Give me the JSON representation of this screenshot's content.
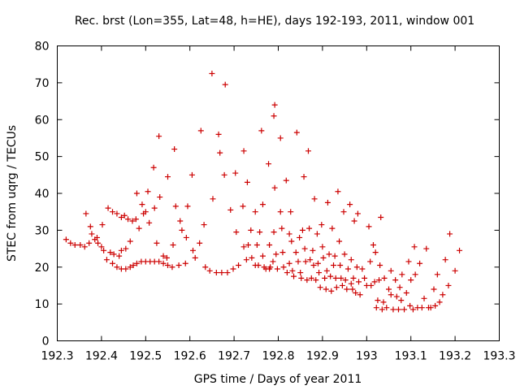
{
  "chart_data": {
    "type": "scatter",
    "title": "Rec. brst (Lon=355, Lat=48, h=HE), days 192-193, 2011, window 001",
    "xlabel": "GPS time / Days of year 2011",
    "ylabel": "STEC from uqrg / TECUs",
    "xlim": [
      192.3,
      193.3
    ],
    "ylim": [
      0,
      80
    ],
    "xticks": [
      192.3,
      192.4,
      192.5,
      192.6,
      192.7,
      192.8,
      192.9,
      193.0,
      193.1,
      193.2,
      193.3
    ],
    "xtick_labels": [
      "192.3",
      "192.4",
      "192.5",
      "192.6",
      "192.7",
      "192.8",
      "192.9",
      "193",
      "193.1",
      "193.2",
      "193.3"
    ],
    "yticks": [
      0,
      10,
      20,
      30,
      40,
      50,
      60,
      70,
      80
    ],
    "ytick_labels": [
      "0",
      "10",
      "20",
      "30",
      "40",
      "50",
      "60",
      "70",
      "80"
    ],
    "grid": false,
    "legend": "none",
    "marker": "plus",
    "marker_color": "#cc0000",
    "series": [
      {
        "name": "STEC",
        "points": [
          [
            192.32,
            27.5
          ],
          [
            192.33,
            26.5
          ],
          [
            192.34,
            26.0
          ],
          [
            192.352,
            26.0
          ],
          [
            192.362,
            25.5
          ],
          [
            192.372,
            26.5
          ],
          [
            192.375,
            31.0
          ],
          [
            192.378,
            29.0
          ],
          [
            192.385,
            27.5
          ],
          [
            192.39,
            28.0
          ],
          [
            192.392,
            26.5
          ],
          [
            192.365,
            34.5
          ],
          [
            192.402,
            31.5
          ],
          [
            192.4,
            25.5
          ],
          [
            192.405,
            24.5
          ],
          [
            192.412,
            22.0
          ],
          [
            192.415,
            36.0
          ],
          [
            192.425,
            35.0
          ],
          [
            192.435,
            34.5
          ],
          [
            192.445,
            33.5
          ],
          [
            192.452,
            34.0
          ],
          [
            192.42,
            24.0
          ],
          [
            192.428,
            23.5
          ],
          [
            192.44,
            23.0
          ],
          [
            192.445,
            24.5
          ],
          [
            192.455,
            25.0
          ],
          [
            192.465,
            27.0
          ],
          [
            192.425,
            21.0
          ],
          [
            192.435,
            20.0
          ],
          [
            192.445,
            19.5
          ],
          [
            192.455,
            19.5
          ],
          [
            192.465,
            20.0
          ],
          [
            192.472,
            20.5
          ],
          [
            192.48,
            21.0
          ],
          [
            192.49,
            21.5
          ],
          [
            192.5,
            21.5
          ],
          [
            192.51,
            21.5
          ],
          [
            192.52,
            21.5
          ],
          [
            192.53,
            21.5
          ],
          [
            192.54,
            21.0
          ],
          [
            192.55,
            20.5
          ],
          [
            192.56,
            20.0
          ],
          [
            192.575,
            20.5
          ],
          [
            192.59,
            21.0
          ],
          [
            192.46,
            33.0
          ],
          [
            192.47,
            32.5
          ],
          [
            192.478,
            33.0
          ],
          [
            192.48,
            40.0
          ],
          [
            192.485,
            30.5
          ],
          [
            192.492,
            37.0
          ],
          [
            192.495,
            34.5
          ],
          [
            192.5,
            35.0
          ],
          [
            192.505,
            40.5
          ],
          [
            192.508,
            32.0
          ],
          [
            192.52,
            36.0
          ],
          [
            192.518,
            47.0
          ],
          [
            192.525,
            26.5
          ],
          [
            192.532,
            39.0
          ],
          [
            192.53,
            55.5
          ],
          [
            192.54,
            23.0
          ],
          [
            192.548,
            22.5
          ],
          [
            192.55,
            44.5
          ],
          [
            192.565,
            52.0
          ],
          [
            192.562,
            26.0
          ],
          [
            192.568,
            36.5
          ],
          [
            192.578,
            32.5
          ],
          [
            192.582,
            30.0
          ],
          [
            192.592,
            28.0
          ],
          [
            192.595,
            36.5
          ],
          [
            192.605,
            45.0
          ],
          [
            192.607,
            24.5
          ],
          [
            192.612,
            22.5
          ],
          [
            192.625,
            57.0
          ],
          [
            192.622,
            26.5
          ],
          [
            192.632,
            31.5
          ],
          [
            192.635,
            20.0
          ],
          [
            192.645,
            19.0
          ],
          [
            192.65,
            72.5
          ],
          [
            192.652,
            38.5
          ],
          [
            192.66,
            18.5
          ],
          [
            192.665,
            56.0
          ],
          [
            192.668,
            51.0
          ],
          [
            192.672,
            18.5
          ],
          [
            192.678,
            45.0
          ],
          [
            192.68,
            69.5
          ],
          [
            192.685,
            18.5
          ],
          [
            192.692,
            35.5
          ],
          [
            192.698,
            19.5
          ],
          [
            192.703,
            45.5
          ],
          [
            192.705,
            29.5
          ],
          [
            192.71,
            20.5
          ],
          [
            192.722,
            51.5
          ],
          [
            192.72,
            36.5
          ],
          [
            192.722,
            25.5
          ],
          [
            192.728,
            22.0
          ],
          [
            192.732,
            26.0
          ],
          [
            192.73,
            43.0
          ],
          [
            192.738,
            30.0
          ],
          [
            192.74,
            22.5
          ],
          [
            192.748,
            35.0
          ],
          [
            192.748,
            20.5
          ],
          [
            192.752,
            26.0
          ],
          [
            192.755,
            20.5
          ],
          [
            192.758,
            29.5
          ],
          [
            192.762,
            57.0
          ],
          [
            192.765,
            37.0
          ],
          [
            192.765,
            23.0
          ],
          [
            192.768,
            20.0
          ],
          [
            192.772,
            19.5
          ],
          [
            192.778,
            48.0
          ],
          [
            192.78,
            26.0
          ],
          [
            192.78,
            19.5
          ],
          [
            192.782,
            20.0
          ],
          [
            192.788,
            21.5
          ],
          [
            192.79,
            29.5
          ],
          [
            192.792,
            64.0
          ],
          [
            192.79,
            61.0
          ],
          [
            192.792,
            41.5
          ],
          [
            192.795,
            23.5
          ],
          [
            192.798,
            19.5
          ],
          [
            192.805,
            55.0
          ],
          [
            192.805,
            35.0
          ],
          [
            192.808,
            30.5
          ],
          [
            192.81,
            24.0
          ],
          [
            192.812,
            20.0
          ],
          [
            192.818,
            43.5
          ],
          [
            192.82,
            18.5
          ],
          [
            192.825,
            21.0
          ],
          [
            192.825,
            29.0
          ],
          [
            192.828,
            35.0
          ],
          [
            192.83,
            27.0
          ],
          [
            192.832,
            19.0
          ],
          [
            192.835,
            17.5
          ],
          [
            192.84,
            24.0
          ],
          [
            192.842,
            56.5
          ],
          [
            192.845,
            21.5
          ],
          [
            192.848,
            28.0
          ],
          [
            192.85,
            18.5
          ],
          [
            192.852,
            17.0
          ],
          [
            192.855,
            30.0
          ],
          [
            192.858,
            44.5
          ],
          [
            192.86,
            25.0
          ],
          [
            192.862,
            21.5
          ],
          [
            192.865,
            16.5
          ],
          [
            192.868,
            51.5
          ],
          [
            192.87,
            30.5
          ],
          [
            192.872,
            22.0
          ],
          [
            192.875,
            17.0
          ],
          [
            192.878,
            24.5
          ],
          [
            192.88,
            20.5
          ],
          [
            192.882,
            38.5
          ],
          [
            192.885,
            16.5
          ],
          [
            192.888,
            29.0
          ],
          [
            192.89,
            21.0
          ],
          [
            192.892,
            18.5
          ],
          [
            192.895,
            14.5
          ],
          [
            192.898,
            31.5
          ],
          [
            192.9,
            25.5
          ],
          [
            192.902,
            22.5
          ],
          [
            192.905,
            17.0
          ],
          [
            192.908,
            14.0
          ],
          [
            192.91,
            19.0
          ],
          [
            192.912,
            37.5
          ],
          [
            192.915,
            23.5
          ],
          [
            192.918,
            17.5
          ],
          [
            192.92,
            13.5
          ],
          [
            192.922,
            30.5
          ],
          [
            192.925,
            20.5
          ],
          [
            192.928,
            23.0
          ],
          [
            192.93,
            17.0
          ],
          [
            192.932,
            14.5
          ],
          [
            192.935,
            40.5
          ],
          [
            192.938,
            27.0
          ],
          [
            192.94,
            20.5
          ],
          [
            192.942,
            17.0
          ],
          [
            192.945,
            15.0
          ],
          [
            192.948,
            35.0
          ],
          [
            192.95,
            23.5
          ],
          [
            192.952,
            16.5
          ],
          [
            192.955,
            14.0
          ],
          [
            192.958,
            19.5
          ],
          [
            192.962,
            37.0
          ],
          [
            192.965,
            22.0
          ],
          [
            192.965,
            15.5
          ],
          [
            192.968,
            14.0
          ],
          [
            192.97,
            17.0
          ],
          [
            192.972,
            32.5
          ],
          [
            192.975,
            13.0
          ],
          [
            192.978,
            20.0
          ],
          [
            192.98,
            34.5
          ],
          [
            192.982,
            16.0
          ],
          [
            192.985,
            12.5
          ],
          [
            192.99,
            19.5
          ],
          [
            192.995,
            17.0
          ],
          [
            193.0,
            15.0
          ],
          [
            193.005,
            31.0
          ],
          [
            193.008,
            21.5
          ],
          [
            193.01,
            15.0
          ],
          [
            193.015,
            26.0
          ],
          [
            193.018,
            16.0
          ],
          [
            193.02,
            24.0
          ],
          [
            193.022,
            9.0
          ],
          [
            193.025,
            11.0
          ],
          [
            193.028,
            16.5
          ],
          [
            193.03,
            20.5
          ],
          [
            193.032,
            33.5
          ],
          [
            193.035,
            8.5
          ],
          [
            193.038,
            10.5
          ],
          [
            193.04,
            17.0
          ],
          [
            193.045,
            9.0
          ],
          [
            193.05,
            14.0
          ],
          [
            193.055,
            19.0
          ],
          [
            193.055,
            12.5
          ],
          [
            193.06,
            8.5
          ],
          [
            193.065,
            16.5
          ],
          [
            193.068,
            12.0
          ],
          [
            193.072,
            8.5
          ],
          [
            193.075,
            14.5
          ],
          [
            193.078,
            11.0
          ],
          [
            193.08,
            18.0
          ],
          [
            193.085,
            8.5
          ],
          [
            193.09,
            13.0
          ],
          [
            193.095,
            21.5
          ],
          [
            193.098,
            9.5
          ],
          [
            193.1,
            16.5
          ],
          [
            193.105,
            8.5
          ],
          [
            193.108,
            25.5
          ],
          [
            193.11,
            18.0
          ],
          [
            193.115,
            9.0
          ],
          [
            193.12,
            21.0
          ],
          [
            193.125,
            9.0
          ],
          [
            193.13,
            11.5
          ],
          [
            193.135,
            25.0
          ],
          [
            193.14,
            9.0
          ],
          [
            193.145,
            9.0
          ],
          [
            193.152,
            14.0
          ],
          [
            193.155,
            9.5
          ],
          [
            193.16,
            18.0
          ],
          [
            193.165,
            10.5
          ],
          [
            193.172,
            12.5
          ],
          [
            193.178,
            22.0
          ],
          [
            193.185,
            15.0
          ],
          [
            193.188,
            29.0
          ],
          [
            193.2,
            19.0
          ],
          [
            193.21,
            24.5
          ]
        ]
      }
    ]
  }
}
